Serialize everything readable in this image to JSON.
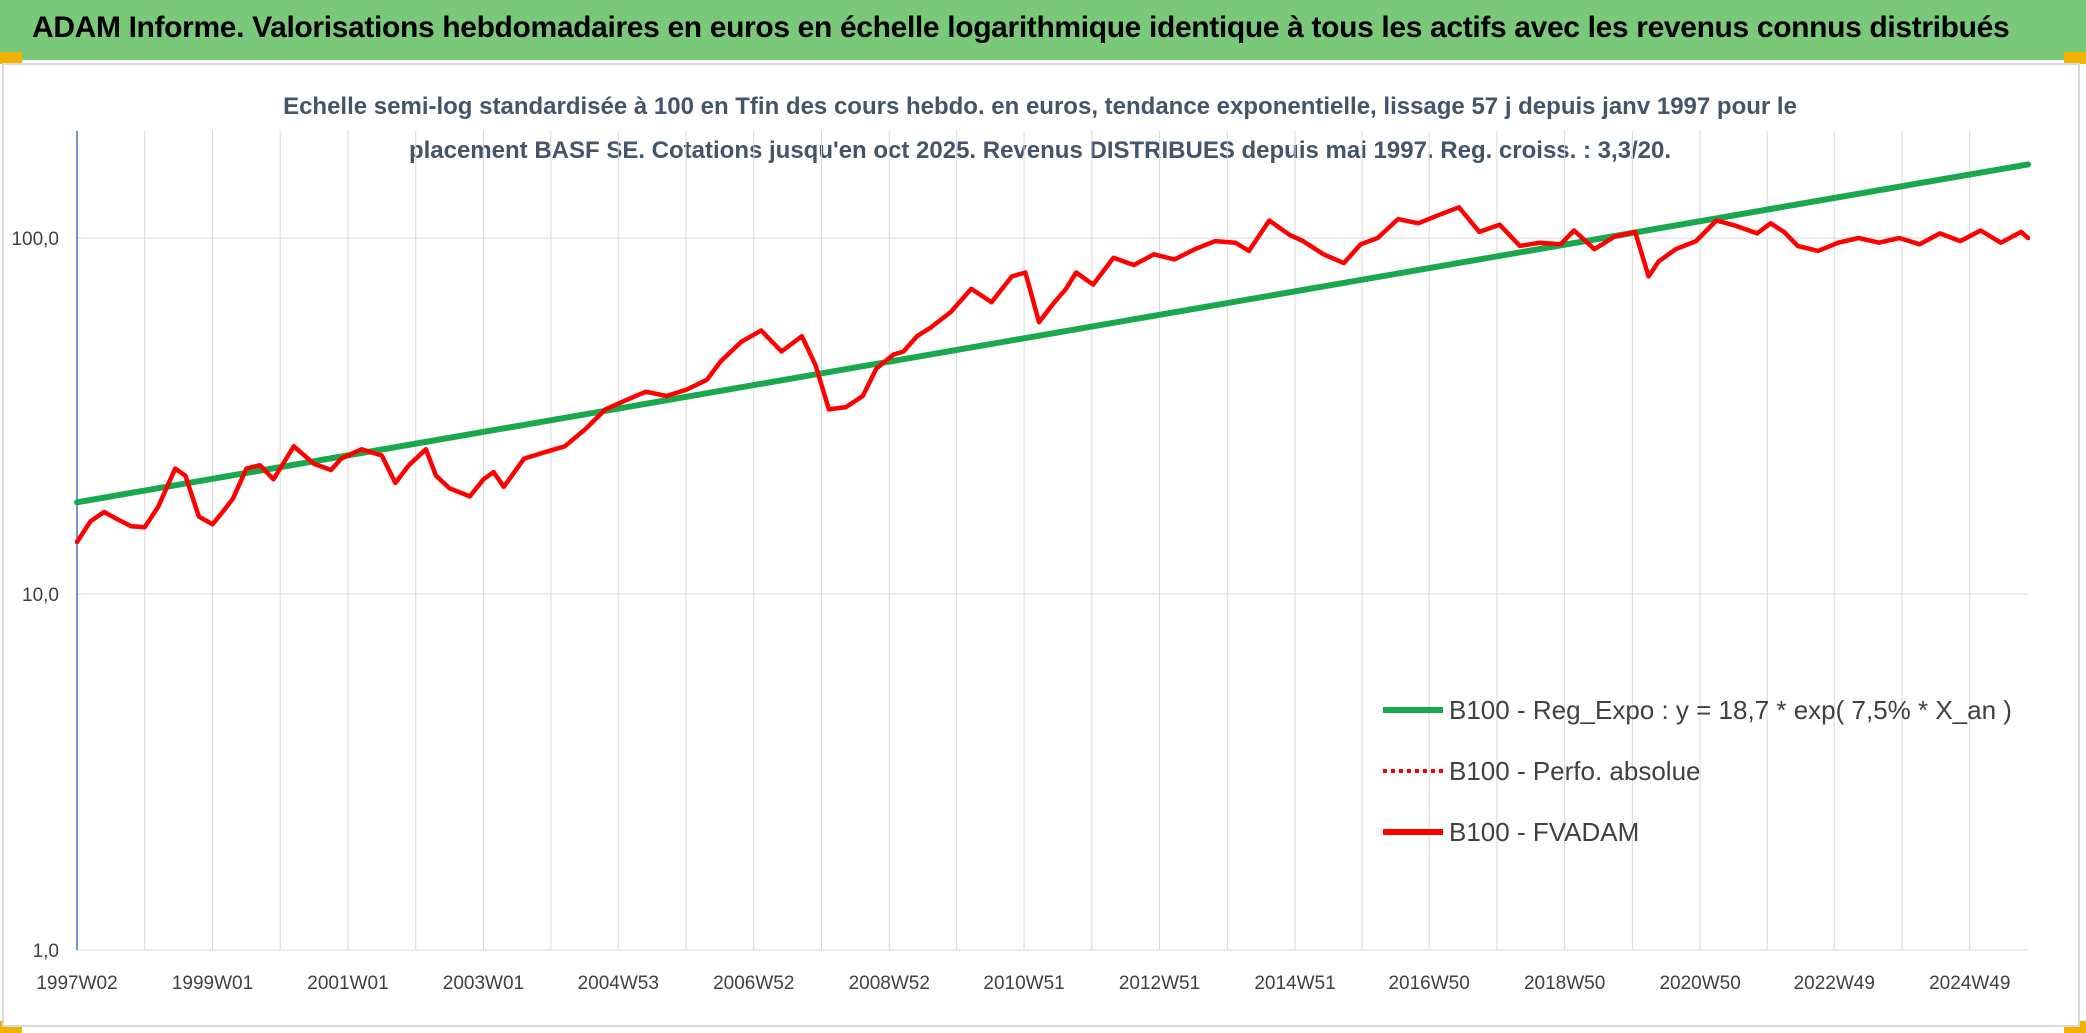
{
  "header": {
    "title": "ADAM Informe. Valorisations hebdomadaires en euros en échelle logarithmique identique à tous les actifs avec les revenus connus distribués"
  },
  "chart_data": {
    "type": "line",
    "subtitle_lines": [
      "Echelle semi-log standardisée à 100 en Tfin des cours hebdo. en euros, tendance exponentielle, lissage 57 j depuis janv 1997 pour le",
      "placement BASF SE. Cotations jusqu'en oct 2025. Revenus DISTRIBUES depuis mai 1997. Reg. croiss. : 3,3/20."
    ],
    "y_scale": "log",
    "ylim": [
      1,
      200
    ],
    "y_ticks": [
      {
        "value": 1,
        "label": "1,0"
      },
      {
        "value": 10,
        "label": "10,0"
      },
      {
        "value": 100,
        "label": "100,0"
      }
    ],
    "xlim": [
      1997.0,
      2025.8
    ],
    "x_ticks": [
      {
        "value": 1997.0,
        "label": "1997W02"
      },
      {
        "value": 1999.0,
        "label": "1999W01"
      },
      {
        "value": 2001.0,
        "label": "2001W01"
      },
      {
        "value": 2003.0,
        "label": "2003W01"
      },
      {
        "value": 2004.99,
        "label": "2004W53"
      },
      {
        "value": 2006.99,
        "label": "2006W52"
      },
      {
        "value": 2008.99,
        "label": "2008W52"
      },
      {
        "value": 2010.98,
        "label": "2010W51"
      },
      {
        "value": 2012.98,
        "label": "2012W51"
      },
      {
        "value": 2014.98,
        "label": "2014W51"
      },
      {
        "value": 2016.96,
        "label": "2016W50"
      },
      {
        "value": 2018.96,
        "label": "2018W50"
      },
      {
        "value": 2020.96,
        "label": "2020W50"
      },
      {
        "value": 2022.94,
        "label": "2022W49"
      },
      {
        "value": 2024.94,
        "label": "2024W49"
      }
    ],
    "grid": {
      "vertical": true,
      "horizontal": true
    },
    "legend_position": "lower-right",
    "series": [
      {
        "name": "B100 - Reg_Expo : y = 18,7 * exp( 7,5% *  X_an )",
        "color": "#1aa84f",
        "style": "solid",
        "x": [
          1997.0,
          2025.8
        ],
        "y": [
          18.1,
          161
        ]
      },
      {
        "name": "B100 - Perfo. absolue",
        "color": "#ff0000",
        "style": "dotted",
        "x": [],
        "y": []
      },
      {
        "name": "B100 - FVADAM",
        "color": "#ff0000",
        "style": "solid",
        "x": [
          1997.0,
          1997.2,
          1997.4,
          1997.6,
          1997.8,
          1998.0,
          1998.2,
          1998.45,
          1998.6,
          1998.8,
          1999.0,
          1999.15,
          1999.3,
          1999.5,
          1999.7,
          1999.9,
          2000.2,
          2000.5,
          2000.75,
          2000.9,
          2001.2,
          2001.5,
          2001.7,
          2001.9,
          2002.15,
          2002.3,
          2002.5,
          2002.8,
          2003.0,
          2003.15,
          2003.3,
          2003.6,
          2003.9,
          2004.2,
          2004.5,
          2004.8,
          2005.1,
          2005.4,
          2005.7,
          2006.0,
          2006.3,
          2006.5,
          2006.8,
          2007.1,
          2007.4,
          2007.7,
          2007.9,
          2008.1,
          2008.35,
          2008.6,
          2008.8,
          2009.05,
          2009.2,
          2009.4,
          2009.6,
          2009.9,
          2010.2,
          2010.5,
          2010.8,
          2011.0,
          2011.2,
          2011.4,
          2011.6,
          2011.75,
          2012.0,
          2012.3,
          2012.6,
          2012.9,
          2013.2,
          2013.5,
          2013.8,
          2014.1,
          2014.3,
          2014.6,
          2014.9,
          2015.1,
          2015.4,
          2015.7,
          2015.95,
          2016.2,
          2016.5,
          2016.8,
          2017.1,
          2017.4,
          2017.7,
          2018.0,
          2018.3,
          2018.6,
          2018.9,
          2019.1,
          2019.4,
          2019.7,
          2020.0,
          2020.2,
          2020.35,
          2020.6,
          2020.9,
          2021.2,
          2021.5,
          2021.8,
          2022.0,
          2022.2,
          2022.4,
          2022.7,
          2023.0,
          2023.3,
          2023.6,
          2023.9,
          2024.2,
          2024.5,
          2024.8,
          2025.1,
          2025.4,
          2025.7,
          2025.8
        ],
        "y": [
          14.0,
          16.0,
          17.0,
          16.2,
          15.5,
          15.4,
          17.6,
          22.5,
          21.5,
          16.5,
          15.7,
          17.0,
          18.5,
          22.5,
          23.0,
          21.0,
          26.0,
          23.2,
          22.3,
          24.0,
          25.5,
          24.5,
          20.5,
          23.0,
          25.5,
          21.5,
          19.8,
          18.8,
          21.0,
          22.0,
          20.0,
          24.0,
          25.0,
          26.0,
          29.0,
          33.0,
          35.0,
          37.0,
          36.0,
          37.5,
          40.0,
          45.0,
          51.0,
          55.0,
          48.0,
          53.0,
          44.0,
          33.0,
          33.5,
          36.0,
          43.0,
          47.0,
          48.0,
          53.0,
          56.0,
          62.0,
          72.0,
          66.0,
          78.0,
          80.0,
          58.0,
          65.0,
          72.0,
          80.0,
          74.0,
          88.0,
          84.0,
          90.0,
          87.0,
          93.0,
          98.0,
          97.0,
          92.0,
          112.0,
          102.0,
          98.0,
          90.0,
          85.0,
          96.0,
          100.0,
          113.0,
          110.0,
          116.0,
          122.0,
          104.0,
          109.0,
          95.0,
          97.0,
          96.0,
          105.0,
          93.0,
          101.0,
          104.0,
          78.0,
          86.0,
          93.0,
          98.0,
          112.0,
          108.0,
          103.0,
          110.0,
          104.0,
          95.0,
          92.0,
          97.0,
          100.0,
          97.0,
          100.0,
          96.0,
          103.0,
          98.0,
          105.0,
          97.0,
          104.0,
          100.0
        ]
      }
    ]
  }
}
